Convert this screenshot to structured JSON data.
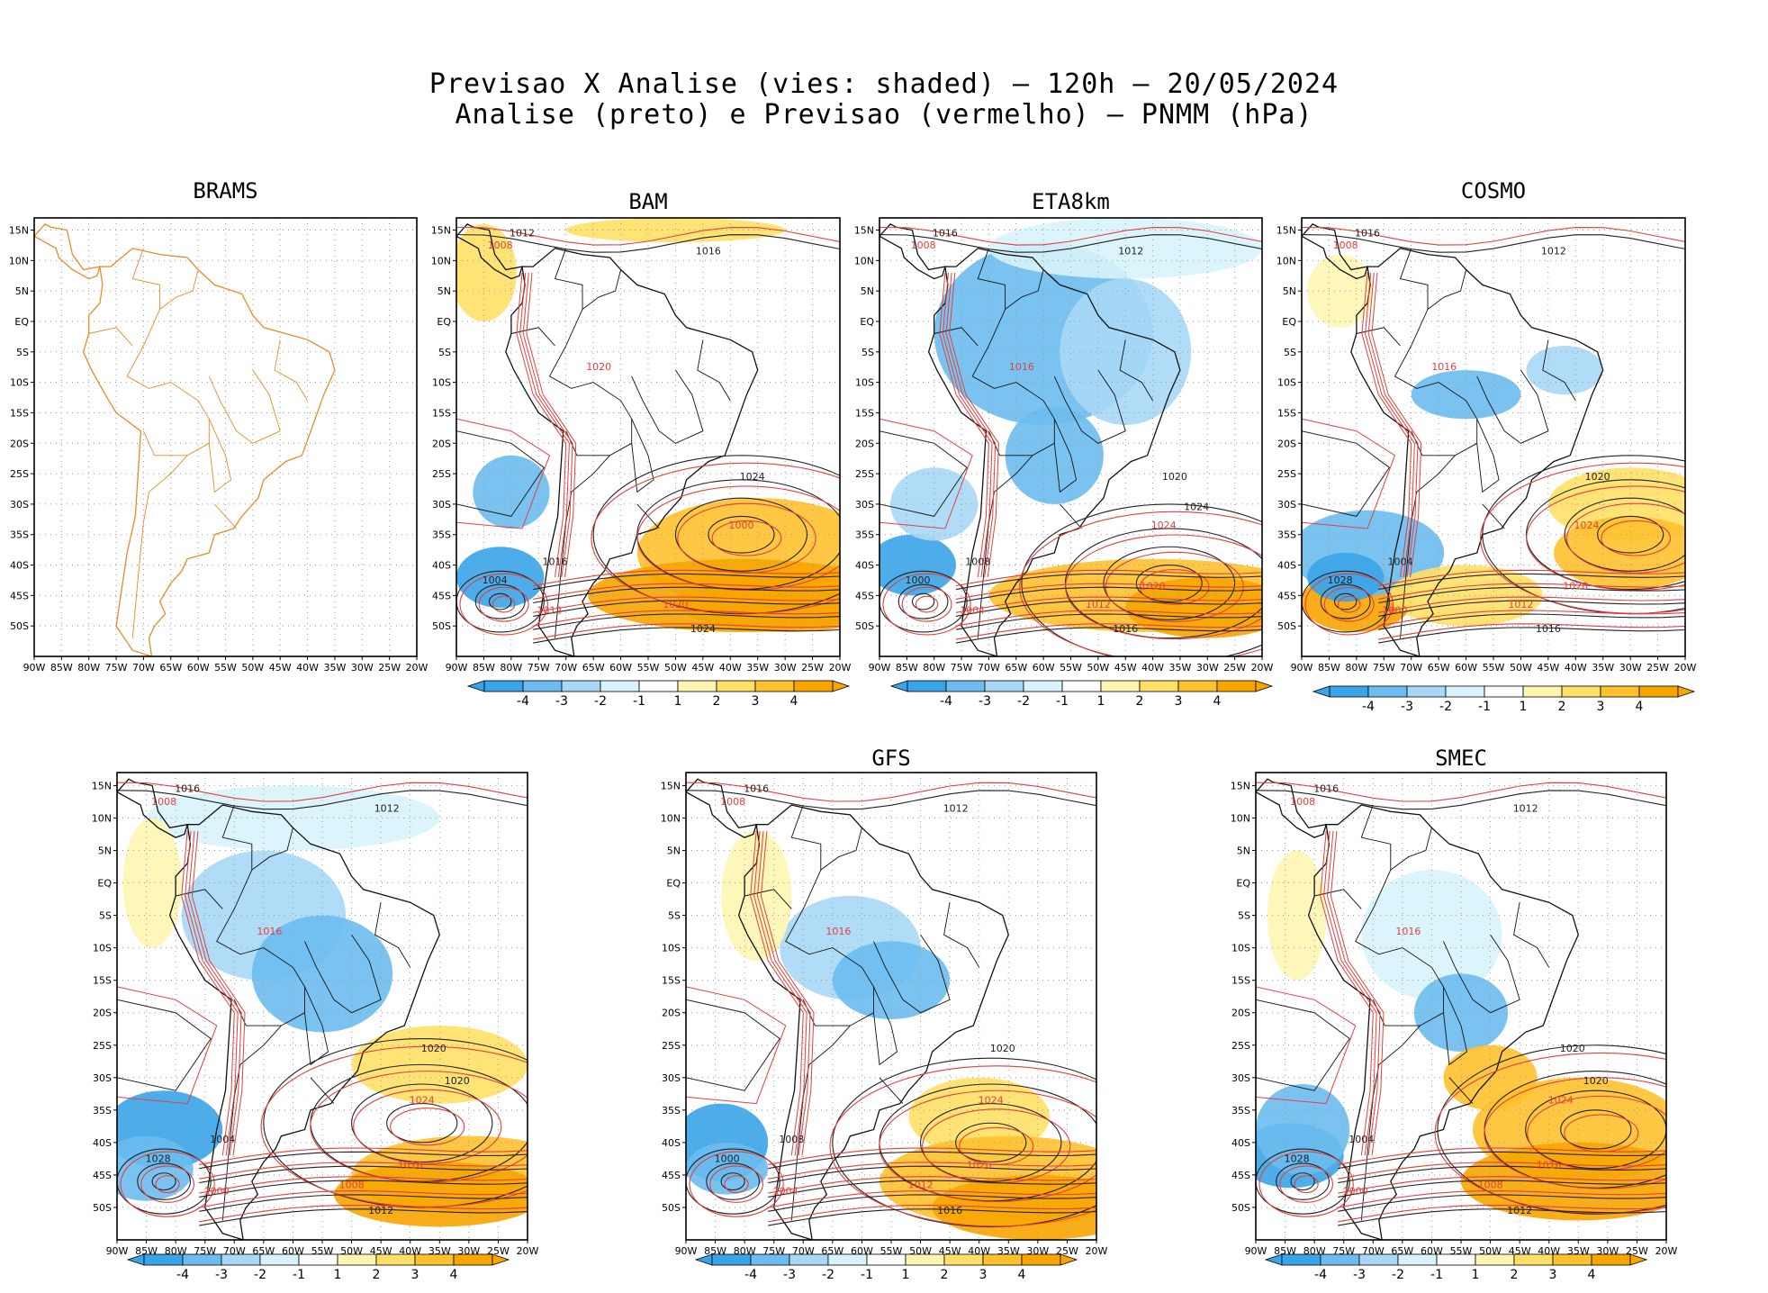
{
  "title": {
    "line1": "Previsao X Analise (vies: shaded) – 120h – 20/05/2024",
    "line2": "Analise (preto) e Previsao (vermelho) – PNMM (hPa)"
  },
  "axes": {
    "lon_labels": [
      "90W",
      "85W",
      "80W",
      "75W",
      "70W",
      "65W",
      "60W",
      "55W",
      "50W",
      "45W",
      "40W",
      "35W",
      "30W",
      "25W",
      "20W"
    ],
    "lat_labels": [
      "15N",
      "10N",
      "5N",
      "EQ",
      "5S",
      "10S",
      "15S",
      "20S",
      "25S",
      "30S",
      "35S",
      "40S",
      "45S",
      "50S"
    ]
  },
  "colorbar": {
    "labels": [
      "-4",
      "-3",
      "-2",
      "-1",
      "1",
      "2",
      "3",
      "4"
    ],
    "colors": [
      "#3aa4e8",
      "#6cbcf0",
      "#a8d8f6",
      "#d8f3fb",
      "#ffffff",
      "#fff5b3",
      "#ffe066",
      "#ffc12e",
      "#f8a500"
    ]
  },
  "colors": {
    "analysis": "#222222",
    "forecast": "#e3403c",
    "coast_brams": "#e98a2a"
  },
  "panels": [
    {
      "name": "BRAMS",
      "key": "brams",
      "has_data": false
    },
    {
      "name": "BAM",
      "key": "bam",
      "has_data": true,
      "labels": [
        "1012",
        "1008",
        "1016",
        "1020",
        "1024",
        "1000",
        "1004",
        "1012",
        "1016",
        "1020",
        "1024"
      ]
    },
    {
      "name": "ETA8km",
      "key": "eta",
      "has_data": true,
      "labels": [
        "1016",
        "1008",
        "1012",
        "1016",
        "1020",
        "1024",
        "1000",
        "1004",
        "1008",
        "1012",
        "1016",
        "1020",
        "1024"
      ]
    },
    {
      "name": "COSMO",
      "key": "cosmo",
      "has_data": true,
      "labels": [
        "1016",
        "1008",
        "1012",
        "1016",
        "1020",
        "1024",
        "1028",
        "1000",
        "1004",
        "1012",
        "1016",
        "1020"
      ]
    },
    {
      "name": "",
      "key": "p5",
      "has_data": true,
      "labels": [
        "1016",
        "1008",
        "1012",
        "1016",
        "1020",
        "1024",
        "1028",
        "1000",
        "1004",
        "1008",
        "1012",
        "1016",
        "1020"
      ]
    },
    {
      "name": "GFS",
      "key": "gfs",
      "has_data": true,
      "labels": [
        "1016",
        "1008",
        "1012",
        "1016",
        "1020",
        "1024",
        "1000",
        "1004",
        "1008",
        "1012",
        "1016",
        "1020"
      ]
    },
    {
      "name": "SMEC",
      "key": "smec",
      "has_data": true,
      "labels": [
        "1016",
        "1008",
        "1012",
        "1016",
        "1020",
        "1024",
        "1028",
        "1000",
        "1004",
        "1008",
        "1012",
        "1016",
        "1020"
      ]
    }
  ]
}
